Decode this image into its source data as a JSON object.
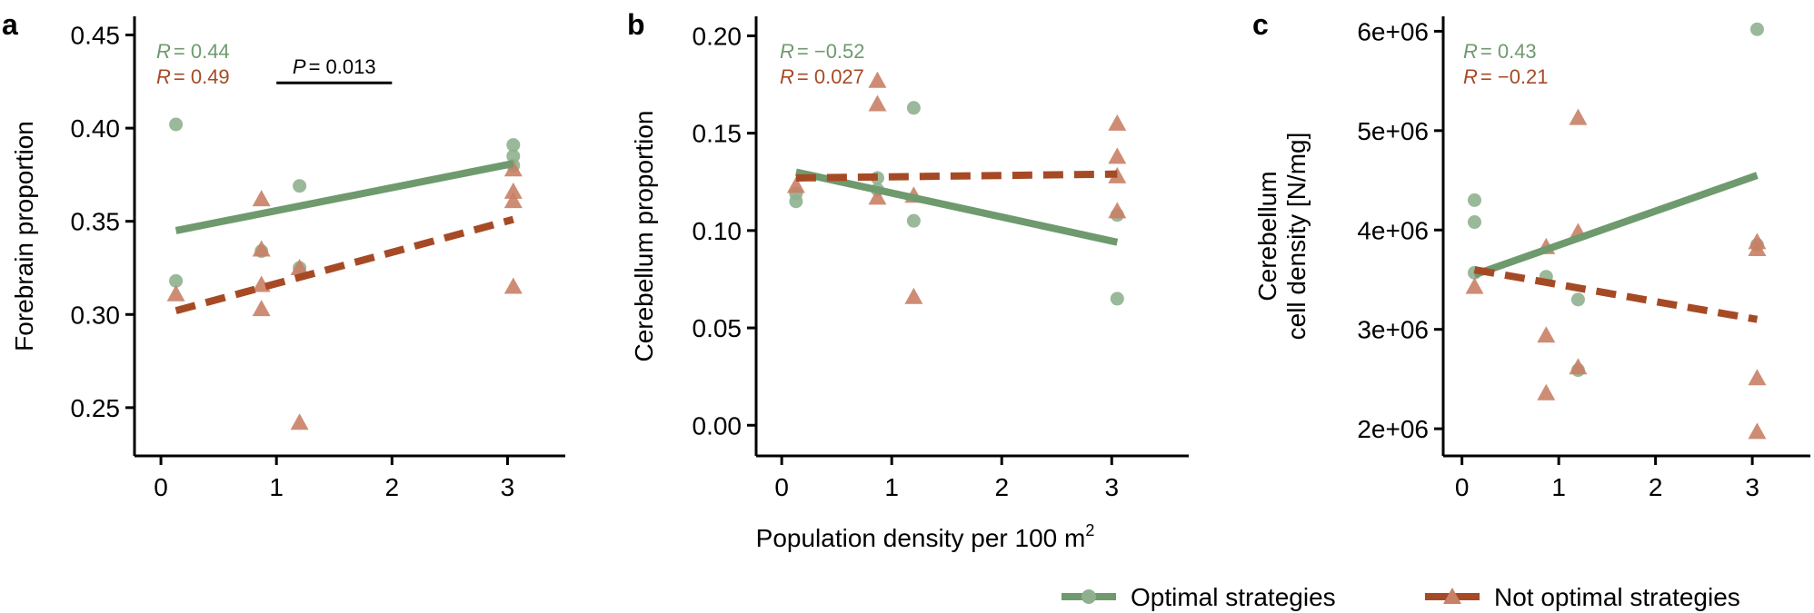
{
  "colors": {
    "optimal": "#6e9a6e",
    "optimal_point": "#8fb08f",
    "not_optimal": "#a64a26",
    "not_optimal_point": "#c98066",
    "axis": "#000000"
  },
  "figure": {
    "xlabel_prefix": "Population density per 100 m",
    "xlabel_superscript": "2"
  },
  "legend": {
    "items": [
      {
        "label": "Optimal strategies",
        "series": "optimal",
        "marker": "circle"
      },
      {
        "label": "Not optimal strategies",
        "series": "not_optimal",
        "marker": "triangle"
      }
    ]
  },
  "chart_data": [
    {
      "panel_label": "a",
      "type": "scatter",
      "ylabel_lines": [
        "Forebrain proportion"
      ],
      "xlim": [
        -0.15,
        3.5
      ],
      "ylim": [
        0.228,
        0.46
      ],
      "xticks": [
        0,
        1,
        2,
        3
      ],
      "xtick_labels": [
        "0",
        "1",
        "2",
        "3"
      ],
      "yticks": [
        0.25,
        0.3,
        0.35,
        0.4,
        0.45
      ],
      "ytick_labels": [
        "0.25",
        "0.30",
        "0.35",
        "0.40",
        "0.45"
      ],
      "stats": [
        {
          "series": "optimal",
          "label": "R",
          "value": "= 0.44"
        },
        {
          "series": "not_optimal",
          "label": "R",
          "value": "= 0.49"
        }
      ],
      "pvalue": {
        "label": "P",
        "value": "= 0.013",
        "x1": 1.0,
        "x2": 2.0,
        "y": 0.436
      },
      "series": [
        {
          "name": "Optimal strategies",
          "key": "optimal",
          "marker": "circle",
          "points": [
            [
              0.13,
              0.402
            ],
            [
              0.13,
              0.318
            ],
            [
              0.87,
              0.334
            ],
            [
              1.2,
              0.369
            ],
            [
              1.2,
              0.325
            ],
            [
              3.05,
              0.391
            ],
            [
              3.05,
              0.385
            ],
            [
              3.05,
              0.38
            ]
          ],
          "fit": [
            [
              0.13,
              0.345
            ],
            [
              3.05,
              0.381
            ]
          ]
        },
        {
          "name": "Not optimal strategies",
          "key": "not_optimal",
          "marker": "triangle",
          "points": [
            [
              0.13,
              0.311
            ],
            [
              0.87,
              0.362
            ],
            [
              0.87,
              0.335
            ],
            [
              0.87,
              0.316
            ],
            [
              0.87,
              0.303
            ],
            [
              1.2,
              0.325
            ],
            [
              1.2,
              0.242
            ],
            [
              3.05,
              0.378
            ],
            [
              3.05,
              0.366
            ],
            [
              3.05,
              0.361
            ],
            [
              3.05,
              0.315
            ]
          ],
          "fit": [
            [
              0.13,
              0.302
            ],
            [
              3.05,
              0.351
            ]
          ]
        }
      ]
    },
    {
      "panel_label": "b",
      "type": "scatter",
      "ylabel_lines": [
        "Cerebellum proportion"
      ],
      "xlim": [
        -0.15,
        3.7
      ],
      "ylim": [
        -0.012,
        0.21
      ],
      "xticks": [
        0,
        1,
        2,
        3
      ],
      "xtick_labels": [
        "0",
        "1",
        "2",
        "3"
      ],
      "yticks": [
        0.0,
        0.05,
        0.1,
        0.15,
        0.2
      ],
      "ytick_labels": [
        "0.00",
        "0.05",
        "0.10",
        "0.15",
        "0.20"
      ],
      "stats": [
        {
          "series": "optimal",
          "label": "R",
          "value": "= −0.52"
        },
        {
          "series": "not_optimal",
          "label": "R",
          "value": "= 0.027"
        }
      ],
      "series": [
        {
          "name": "Optimal strategies",
          "key": "optimal",
          "marker": "circle",
          "points": [
            [
              0.13,
              0.119
            ],
            [
              0.13,
              0.115
            ],
            [
              0.87,
              0.127
            ],
            [
              0.87,
              0.121
            ],
            [
              1.2,
              0.163
            ],
            [
              1.2,
              0.105
            ],
            [
              3.05,
              0.108
            ],
            [
              3.05,
              0.065
            ]
          ],
          "fit": [
            [
              0.13,
              0.13
            ],
            [
              3.05,
              0.094
            ]
          ]
        },
        {
          "name": "Not optimal strategies",
          "key": "not_optimal",
          "marker": "triangle",
          "points": [
            [
              0.13,
              0.123
            ],
            [
              0.87,
              0.177
            ],
            [
              0.87,
              0.165
            ],
            [
              0.87,
              0.117
            ],
            [
              1.2,
              0.118
            ],
            [
              1.2,
              0.066
            ],
            [
              3.05,
              0.155
            ],
            [
              3.05,
              0.138
            ],
            [
              3.05,
              0.128
            ],
            [
              3.05,
              0.11
            ]
          ],
          "fit": [
            [
              0.13,
              0.127
            ],
            [
              3.05,
              0.129
            ]
          ]
        }
      ]
    },
    {
      "panel_label": "c",
      "type": "scatter",
      "ylabel_lines": [
        "Cerebellum",
        "cell density [N/mg]"
      ],
      "xlim": [
        -0.1,
        3.6
      ],
      "ylim": [
        1800000,
        6150000
      ],
      "xticks": [
        0,
        1,
        2,
        3
      ],
      "xtick_labels": [
        "0",
        "1",
        "2",
        "3"
      ],
      "yticks": [
        2000000,
        3000000,
        4000000,
        5000000,
        6000000
      ],
      "ytick_labels": [
        "2e+06",
        "3e+06",
        "4e+06",
        "5e+06",
        "6e+06"
      ],
      "stats": [
        {
          "series": "optimal",
          "label": "R",
          "value": "= 0.43"
        },
        {
          "series": "not_optimal",
          "label": "R",
          "value": "= −0.21"
        }
      ],
      "series": [
        {
          "name": "Optimal strategies",
          "key": "optimal",
          "marker": "circle",
          "points": [
            [
              0.13,
              4300000
            ],
            [
              0.13,
              4080000
            ],
            [
              0.13,
              3570000
            ],
            [
              0.87,
              3530000
            ],
            [
              1.2,
              3300000
            ],
            [
              1.2,
              2590000
            ],
            [
              3.05,
              6020000
            ],
            [
              3.05,
              3850000
            ]
          ],
          "fit": [
            [
              0.13,
              3550000
            ],
            [
              3.05,
              4550000
            ]
          ]
        },
        {
          "name": "Not optimal strategies",
          "key": "not_optimal",
          "marker": "triangle",
          "points": [
            [
              0.13,
              3430000
            ],
            [
              0.87,
              3830000
            ],
            [
              0.87,
              2940000
            ],
            [
              0.87,
              2360000
            ],
            [
              1.2,
              5130000
            ],
            [
              1.2,
              3980000
            ],
            [
              1.2,
              2620000
            ],
            [
              3.05,
              3880000
            ],
            [
              3.05,
              3810000
            ],
            [
              3.05,
              2510000
            ],
            [
              3.05,
              1970000
            ]
          ],
          "fit": [
            [
              0.13,
              3600000
            ],
            [
              3.05,
              3100000
            ]
          ]
        }
      ]
    }
  ]
}
